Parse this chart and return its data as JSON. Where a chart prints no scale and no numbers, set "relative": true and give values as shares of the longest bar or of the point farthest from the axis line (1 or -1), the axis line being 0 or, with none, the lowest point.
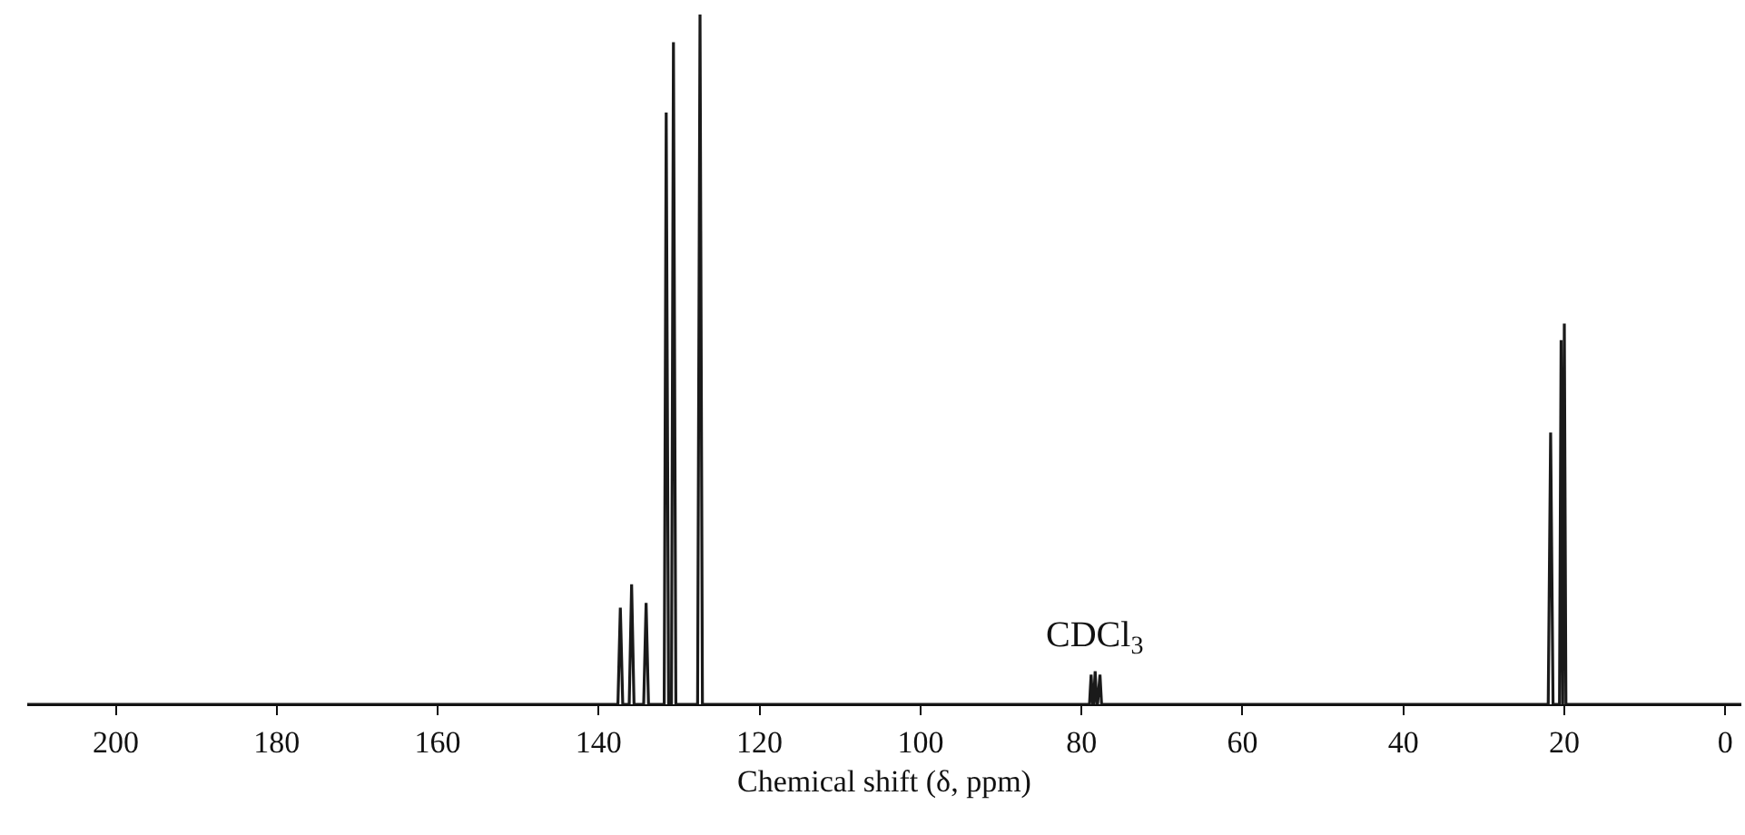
{
  "chart_data": {
    "type": "line",
    "relative": true,
    "xlabel": "Chemical shift (δ, ppm)",
    "xlim": [
      211,
      -2
    ],
    "xticks": [
      200,
      180,
      160,
      140,
      120,
      100,
      80,
      60,
      40,
      20,
      0
    ],
    "marker": "none",
    "line_style": "solid",
    "annotations": [
      {
        "text": "CDCl$_{3}$",
        "x": 78.3,
        "y": 0.048
      }
    ],
    "series": [
      {
        "color": "#1a1a1a",
        "x": [
          211,
          137.6,
          137.3,
          137.0,
          136.2,
          135.9,
          135.6,
          134.4,
          134.1,
          133.8,
          131.85,
          131.6,
          131.3,
          130.95,
          130.7,
          130.4,
          127.7,
          127.4,
          127.1,
          79.0,
          78.8,
          78.6,
          78.5,
          78.3,
          78.1,
          78.0,
          77.7,
          77.5,
          22.0,
          21.7,
          21.4,
          20.6,
          20.4,
          20.2,
          20.0,
          19.8,
          -2
        ],
        "values": [
          0,
          0,
          0.14,
          0,
          0,
          0.174,
          0,
          0,
          0.147,
          0,
          0,
          0.858,
          0,
          0,
          0.96,
          0,
          0,
          1,
          0,
          0,
          0.043,
          0,
          0,
          0.048,
          0,
          0,
          0.043,
          0,
          0,
          0.394,
          0,
          0,
          0.528,
          0,
          0.552,
          0,
          0
        ]
      }
    ]
  }
}
